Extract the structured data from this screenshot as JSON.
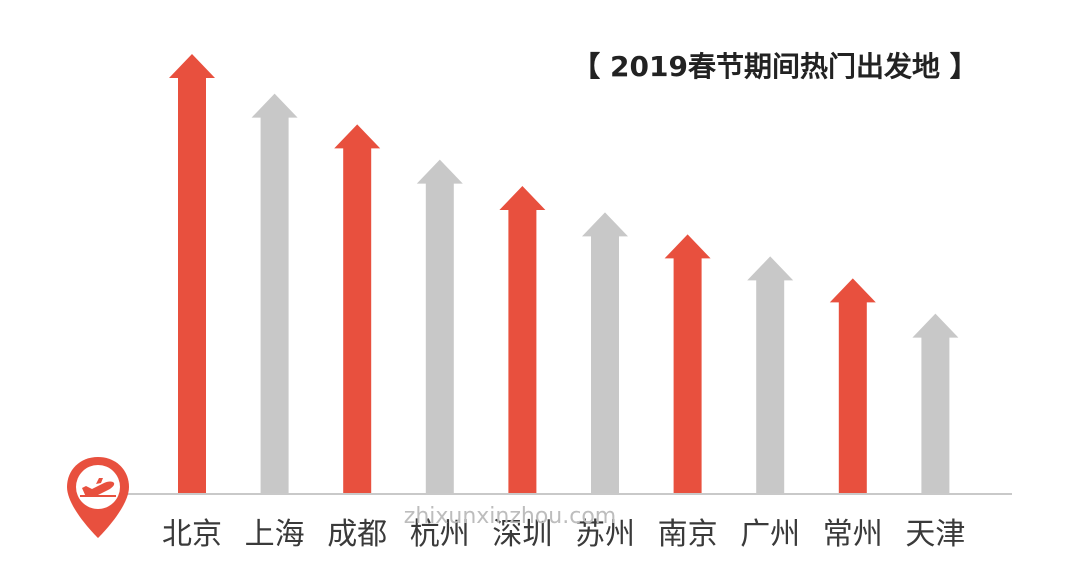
{
  "chart_data": {
    "type": "bar",
    "title": "【 2019春节期间热门出发地 】",
    "categories": [
      "北京",
      "上海",
      "成都",
      "杭州",
      "深圳",
      "苏州",
      "南京",
      "广州",
      "常州",
      "天津"
    ],
    "values": [
      10,
      9.1,
      8.4,
      7.6,
      7.0,
      6.4,
      5.9,
      5.4,
      4.9,
      4.1
    ],
    "value_scale": "relative rank (no numeric axis shown)",
    "grid": false,
    "legend": "none",
    "colors": {
      "highlight": "#e8503e",
      "muted": "#c8c8c8",
      "baseline": "#c9c9c9",
      "label": "#3a3a3a",
      "watermark": "#bdbdbd"
    },
    "color_pattern": [
      "highlight",
      "muted",
      "highlight",
      "muted",
      "highlight",
      "muted",
      "highlight",
      "muted",
      "highlight",
      "muted"
    ]
  },
  "watermark": "zhixunxinzhou.com",
  "icons": {
    "origin_marker": "airplane-departure-location-pin-icon"
  }
}
